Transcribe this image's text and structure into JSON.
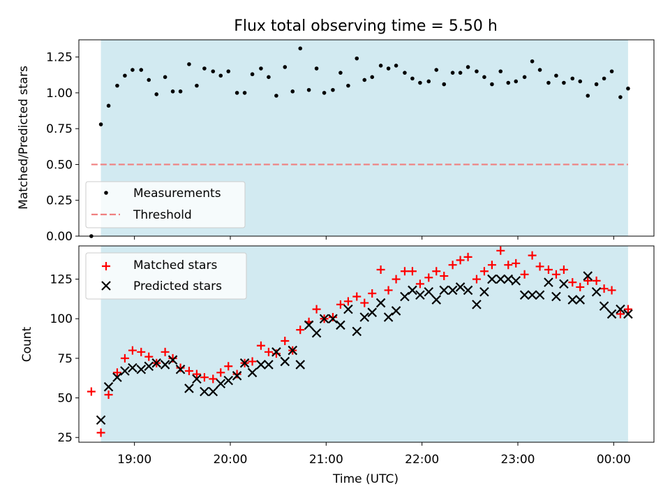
{
  "chart_data": {
    "title": "Flux total observing time = 5.50 h",
    "xlabel": "Time (UTC)",
    "x_ticks": [
      "19:00",
      "20:00",
      "21:00",
      "22:00",
      "23:00",
      "00:00"
    ],
    "x_tick_hours": [
      19,
      20,
      21,
      22,
      23,
      24
    ],
    "xlim_hours": [
      18.42,
      24.42
    ],
    "shaded_span_hours": [
      18.65,
      24.15
    ],
    "shade_color": "#add8e6",
    "top_panel": {
      "type": "scatter",
      "ylabel": "Matched/Predicted stars",
      "ylim": [
        0.0,
        1.37
      ],
      "y_ticks": [
        0.0,
        0.25,
        0.5,
        0.75,
        1.0,
        1.25
      ],
      "y_tick_labels": [
        "0.00",
        "0.25",
        "0.50",
        "0.75",
        "1.00",
        "1.25"
      ],
      "legend": [
        "Measurements",
        "Threshold"
      ],
      "legend_position": "lower-left",
      "threshold": {
        "name": "Threshold",
        "value": 0.5,
        "x_range_hours": [
          18.55,
          24.15
        ],
        "color": "#f08080"
      },
      "measurements_color": "#000000",
      "points": [
        [
          18.55,
          0.0
        ],
        [
          18.65,
          0.78
        ],
        [
          18.73,
          0.91
        ],
        [
          18.82,
          1.05
        ],
        [
          18.9,
          1.12
        ],
        [
          18.98,
          1.16
        ],
        [
          19.07,
          1.16
        ],
        [
          19.15,
          1.09
        ],
        [
          19.23,
          0.99
        ],
        [
          19.32,
          1.11
        ],
        [
          19.4,
          1.01
        ],
        [
          19.48,
          1.01
        ],
        [
          19.57,
          1.2
        ],
        [
          19.65,
          1.05
        ],
        [
          19.73,
          1.17
        ],
        [
          19.82,
          1.15
        ],
        [
          19.9,
          1.12
        ],
        [
          19.98,
          1.15
        ],
        [
          20.07,
          1.0
        ],
        [
          20.15,
          1.0
        ],
        [
          20.23,
          1.13
        ],
        [
          20.32,
          1.17
        ],
        [
          20.4,
          1.11
        ],
        [
          20.48,
          0.98
        ],
        [
          20.57,
          1.18
        ],
        [
          20.65,
          1.01
        ],
        [
          20.73,
          1.31
        ],
        [
          20.82,
          1.02
        ],
        [
          20.9,
          1.17
        ],
        [
          20.98,
          1.0
        ],
        [
          21.07,
          1.02
        ],
        [
          21.15,
          1.14
        ],
        [
          21.23,
          1.05
        ],
        [
          21.32,
          1.24
        ],
        [
          21.4,
          1.09
        ],
        [
          21.48,
          1.11
        ],
        [
          21.57,
          1.19
        ],
        [
          21.65,
          1.17
        ],
        [
          21.73,
          1.19
        ],
        [
          21.82,
          1.14
        ],
        [
          21.9,
          1.1
        ],
        [
          21.98,
          1.07
        ],
        [
          22.07,
          1.08
        ],
        [
          22.15,
          1.16
        ],
        [
          22.23,
          1.06
        ],
        [
          22.32,
          1.14
        ],
        [
          22.4,
          1.14
        ],
        [
          22.48,
          1.18
        ],
        [
          22.57,
          1.15
        ],
        [
          22.65,
          1.11
        ],
        [
          22.73,
          1.06
        ],
        [
          22.82,
          1.15
        ],
        [
          22.9,
          1.07
        ],
        [
          22.98,
          1.08
        ],
        [
          23.07,
          1.11
        ],
        [
          23.15,
          1.22
        ],
        [
          23.23,
          1.16
        ],
        [
          23.32,
          1.07
        ],
        [
          23.4,
          1.12
        ],
        [
          23.48,
          1.07
        ],
        [
          23.57,
          1.1
        ],
        [
          23.65,
          1.08
        ],
        [
          23.73,
          0.98
        ],
        [
          23.82,
          1.06
        ],
        [
          23.9,
          1.1
        ],
        [
          23.98,
          1.15
        ],
        [
          24.07,
          0.97
        ],
        [
          24.15,
          1.03
        ]
      ]
    },
    "bottom_panel": {
      "type": "scatter",
      "ylabel": "Count",
      "ylim": [
        22,
        146
      ],
      "y_ticks": [
        25,
        50,
        75,
        100,
        125
      ],
      "y_tick_labels": [
        "25",
        "50",
        "75",
        "100",
        "125"
      ],
      "legend": [
        "Matched stars",
        "Predicted stars"
      ],
      "legend_position": "top-left",
      "series": [
        {
          "name": "Matched stars",
          "marker": "plus",
          "color": "#ff0000",
          "points": [
            [
              18.55,
              54
            ],
            [
              18.65,
              28
            ],
            [
              18.73,
              52
            ],
            [
              18.82,
              66
            ],
            [
              18.9,
              75
            ],
            [
              18.98,
              80
            ],
            [
              19.07,
              79
            ],
            [
              19.15,
              76
            ],
            [
              19.23,
              72
            ],
            [
              19.32,
              79
            ],
            [
              19.4,
              75
            ],
            [
              19.48,
              69
            ],
            [
              19.57,
              67
            ],
            [
              19.65,
              65
            ],
            [
              19.73,
              63
            ],
            [
              19.82,
              62
            ],
            [
              19.9,
              66
            ],
            [
              19.98,
              70
            ],
            [
              20.07,
              65
            ],
            [
              20.15,
              72
            ],
            [
              20.23,
              73
            ],
            [
              20.32,
              83
            ],
            [
              20.4,
              79
            ],
            [
              20.48,
              78
            ],
            [
              20.57,
              86
            ],
            [
              20.65,
              80
            ],
            [
              20.73,
              93
            ],
            [
              20.82,
              98
            ],
            [
              20.9,
              106
            ],
            [
              20.98,
              100
            ],
            [
              21.07,
              101
            ],
            [
              21.15,
              109
            ],
            [
              21.23,
              111
            ],
            [
              21.32,
              114
            ],
            [
              21.4,
              110
            ],
            [
              21.48,
              116
            ],
            [
              21.57,
              131
            ],
            [
              21.65,
              118
            ],
            [
              21.73,
              125
            ],
            [
              21.82,
              130
            ],
            [
              21.9,
              130
            ],
            [
              21.98,
              122
            ],
            [
              22.07,
              126
            ],
            [
              22.15,
              130
            ],
            [
              22.23,
              127
            ],
            [
              22.32,
              134
            ],
            [
              22.4,
              137
            ],
            [
              22.48,
              139
            ],
            [
              22.57,
              125
            ],
            [
              22.65,
              130
            ],
            [
              22.73,
              134
            ],
            [
              22.82,
              143
            ],
            [
              22.9,
              134
            ],
            [
              22.98,
              135
            ],
            [
              23.07,
              128
            ],
            [
              23.15,
              140
            ],
            [
              23.23,
              133
            ],
            [
              23.32,
              131
            ],
            [
              23.4,
              128
            ],
            [
              23.48,
              131
            ],
            [
              23.57,
              123
            ],
            [
              23.65,
              120
            ],
            [
              23.73,
              124
            ],
            [
              23.82,
              124
            ],
            [
              23.9,
              119
            ],
            [
              23.98,
              118
            ],
            [
              24.07,
              103
            ],
            [
              24.15,
              106
            ]
          ]
        },
        {
          "name": "Predicted stars",
          "marker": "x",
          "color": "#000000",
          "points": [
            [
              18.65,
              36
            ],
            [
              18.73,
              57
            ],
            [
              18.82,
              63
            ],
            [
              18.9,
              67
            ],
            [
              18.98,
              69
            ],
            [
              19.07,
              68
            ],
            [
              19.15,
              70
            ],
            [
              19.23,
              72
            ],
            [
              19.32,
              71
            ],
            [
              19.4,
              74
            ],
            [
              19.48,
              68
            ],
            [
              19.57,
              56
            ],
            [
              19.65,
              62
            ],
            [
              19.73,
              54
            ],
            [
              19.82,
              54
            ],
            [
              19.9,
              59
            ],
            [
              19.98,
              61
            ],
            [
              20.07,
              64
            ],
            [
              20.15,
              72
            ],
            [
              20.23,
              66
            ],
            [
              20.32,
              71
            ],
            [
              20.4,
              71
            ],
            [
              20.48,
              79
            ],
            [
              20.57,
              73
            ],
            [
              20.65,
              80
            ],
            [
              20.73,
              71
            ],
            [
              20.82,
              96
            ],
            [
              20.9,
              91
            ],
            [
              20.98,
              100
            ],
            [
              21.07,
              100
            ],
            [
              21.15,
              96
            ],
            [
              21.23,
              106
            ],
            [
              21.32,
              92
            ],
            [
              21.4,
              101
            ],
            [
              21.48,
              104
            ],
            [
              21.57,
              110
            ],
            [
              21.65,
              101
            ],
            [
              21.73,
              105
            ],
            [
              21.82,
              114
            ],
            [
              21.9,
              118
            ],
            [
              21.98,
              115
            ],
            [
              22.07,
              117
            ],
            [
              22.15,
              112
            ],
            [
              22.23,
              118
            ],
            [
              22.32,
              118
            ],
            [
              22.4,
              120
            ],
            [
              22.48,
              118
            ],
            [
              22.57,
              109
            ],
            [
              22.65,
              117
            ],
            [
              22.73,
              125
            ],
            [
              22.82,
              125
            ],
            [
              22.9,
              125
            ],
            [
              22.98,
              124
            ],
            [
              23.07,
              115
            ],
            [
              23.15,
              115
            ],
            [
              23.23,
              115
            ],
            [
              23.32,
              123
            ],
            [
              23.4,
              114
            ],
            [
              23.48,
              122
            ],
            [
              23.57,
              112
            ],
            [
              23.65,
              112
            ],
            [
              23.73,
              127
            ],
            [
              23.82,
              117
            ],
            [
              23.9,
              108
            ],
            [
              23.98,
              103
            ],
            [
              24.07,
              106
            ],
            [
              24.15,
              103
            ]
          ]
        }
      ]
    }
  }
}
